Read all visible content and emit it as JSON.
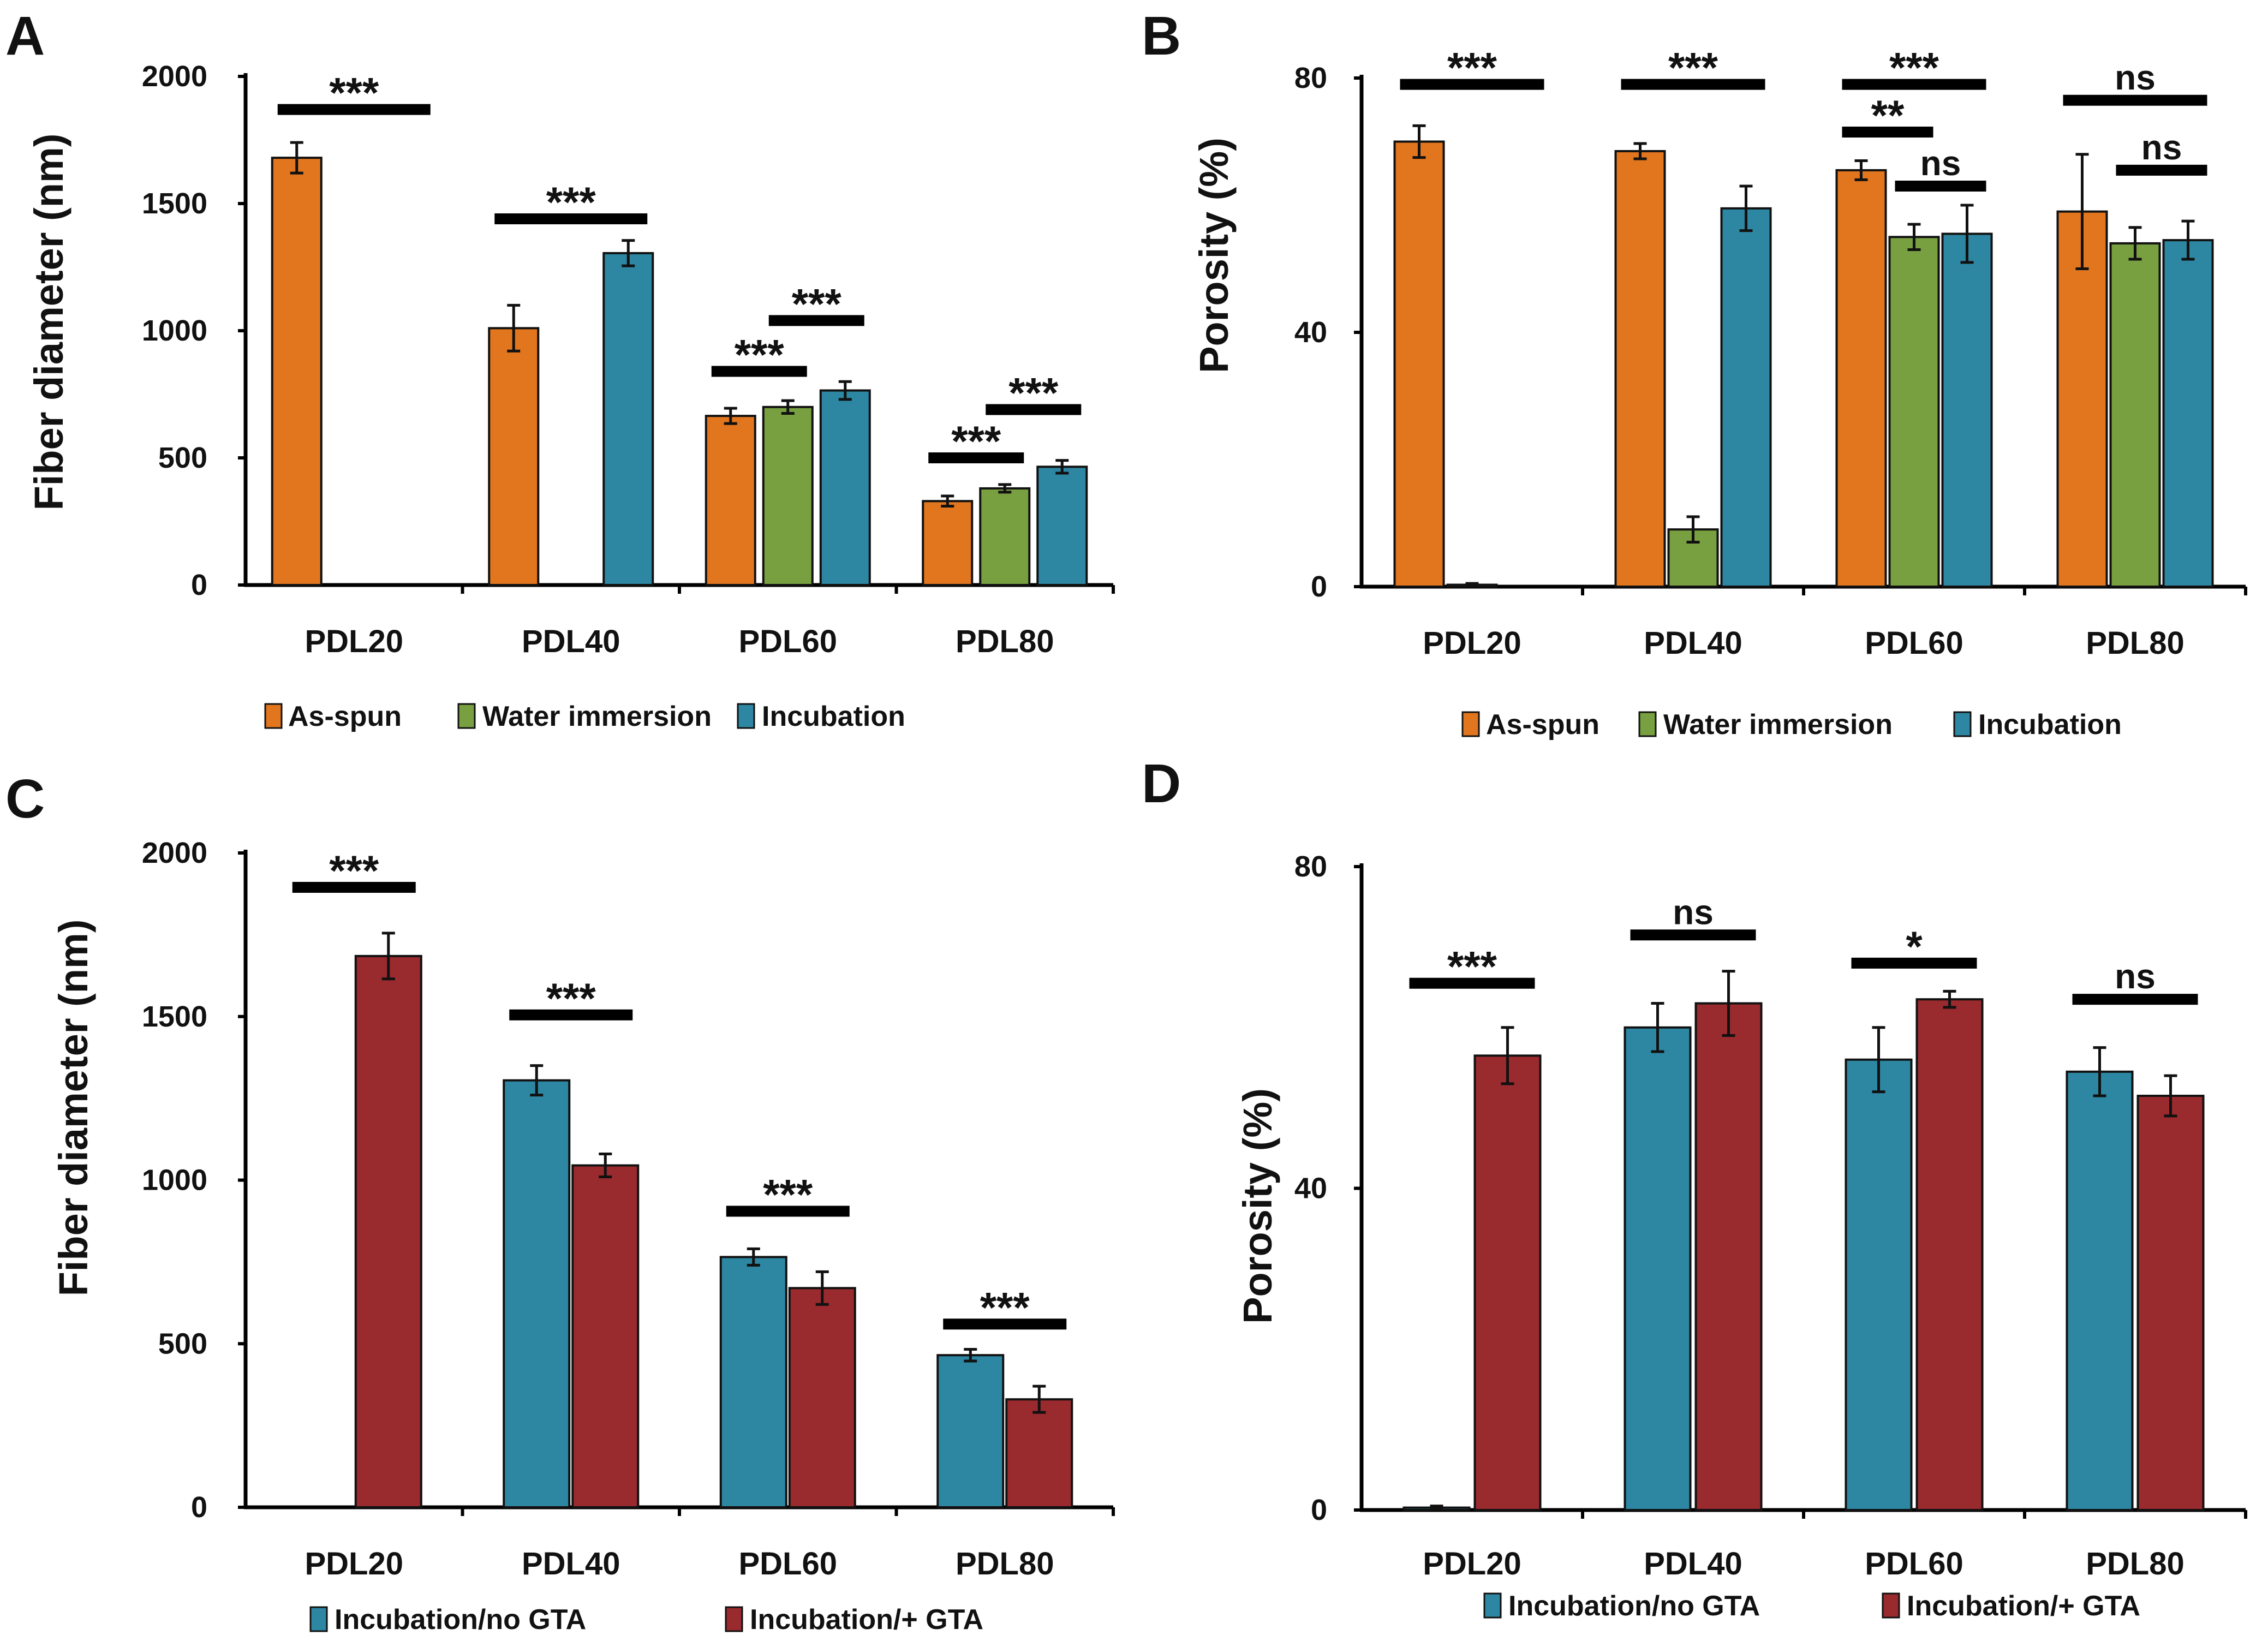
{
  "colors": {
    "as_spun": "#E2761E",
    "water_immersion": "#78A040",
    "incubation": "#2E87A2",
    "incubation_gta": "#992A2E"
  },
  "chart_data": [
    {
      "panel": "A",
      "type": "bar",
      "ylabel": "Fiber diameter (nm)",
      "ylim": [
        0,
        2000
      ],
      "yticks": [
        "0",
        "500",
        "1000",
        "1500",
        "2000"
      ],
      "categories": [
        "PDL20",
        "PDL40",
        "PDL60",
        "PDL80"
      ],
      "series": [
        {
          "name": "As-spun",
          "color_key": "as_spun",
          "values": [
            1680,
            1010,
            665,
            330
          ],
          "errors": [
            60,
            90,
            30,
            20
          ]
        },
        {
          "name": "Water immersion",
          "color_key": "water_immersion",
          "values": [
            null,
            null,
            700,
            380
          ],
          "errors": [
            null,
            null,
            25,
            15
          ]
        },
        {
          "name": "Incubation",
          "color_key": "incubation",
          "values": [
            null,
            1305,
            765,
            465
          ],
          "errors": [
            null,
            50,
            35,
            25
          ]
        }
      ],
      "significance": [
        {
          "label": "***",
          "category": 0,
          "from_series": 0,
          "to_series": 2,
          "level": 1870
        },
        {
          "label": "***",
          "category": 1,
          "from_series": 0,
          "to_series": 2,
          "level": 1440
        },
        {
          "label": "***",
          "category": 2,
          "from_series": 0,
          "to_series": 1,
          "level": 840
        },
        {
          "label": "***",
          "category": 2,
          "from_series": 1,
          "to_series": 2,
          "level": 1040
        },
        {
          "label": "***",
          "category": 3,
          "from_series": 0,
          "to_series": 1,
          "level": 500
        },
        {
          "label": "***",
          "category": 3,
          "from_series": 1,
          "to_series": 2,
          "level": 690
        }
      ]
    },
    {
      "panel": "B",
      "type": "bar",
      "ylabel": "Porosity (%)",
      "ylim": [
        0,
        80
      ],
      "yticks": [
        "0",
        "40",
        "80"
      ],
      "categories": [
        "PDL20",
        "PDL40",
        "PDL60",
        "PDL80"
      ],
      "series": [
        {
          "name": "As-spun",
          "color_key": "as_spun",
          "values": [
            70,
            68.5,
            65.5,
            59
          ],
          "errors": [
            2.5,
            1.2,
            1.5,
            9
          ]
        },
        {
          "name": "Water immersion",
          "color_key": "water_immersion",
          "values": [
            0.3,
            9,
            55,
            54
          ],
          "errors": [
            0.2,
            2,
            2,
            2.5
          ]
        },
        {
          "name": "Incubation",
          "color_key": "incubation",
          "values": [
            null,
            59.5,
            55.5,
            54.5
          ],
          "errors": [
            null,
            3.5,
            4.5,
            3
          ]
        }
      ],
      "significance": [
        {
          "label": "***",
          "category": 0,
          "from_series": 0,
          "to_series": 2,
          "level": 79
        },
        {
          "label": "***",
          "category": 1,
          "from_series": 0,
          "to_series": 2,
          "level": 79
        },
        {
          "label": "***",
          "category": 2,
          "from_series": 0,
          "to_series": 2,
          "level": 79
        },
        {
          "label": "**",
          "category": 2,
          "from_series": 0,
          "to_series": 1,
          "level": 71.5
        },
        {
          "label": "ns",
          "category": 2,
          "from_series": 1,
          "to_series": 2,
          "level": 63
        },
        {
          "label": "ns",
          "category": 3,
          "from_series": 0,
          "to_series": 2,
          "level": 76.5
        },
        {
          "label": "ns",
          "category": 3,
          "from_series": 1,
          "to_series": 2,
          "level": 65.5
        }
      ]
    },
    {
      "panel": "C",
      "type": "bar",
      "ylabel": "Fiber diameter (nm)",
      "ylim": [
        0,
        2000
      ],
      "yticks": [
        "0",
        "500",
        "1000",
        "1500",
        "2000"
      ],
      "categories": [
        "PDL20",
        "PDL40",
        "PDL60",
        "PDL80"
      ],
      "series": [
        {
          "name": "Incubation/no GTA",
          "color_key": "incubation",
          "values": [
            null,
            1305,
            765,
            465
          ],
          "errors": [
            null,
            45,
            25,
            18
          ]
        },
        {
          "name": "Incubation/+ GTA",
          "color_key": "incubation_gta",
          "values": [
            1685,
            1045,
            670,
            330
          ],
          "errors": [
            70,
            35,
            50,
            40
          ]
        }
      ],
      "significance": [
        {
          "label": "***",
          "category": 0,
          "from_series": 0,
          "to_series": 1,
          "level": 1895
        },
        {
          "label": "***",
          "category": 1,
          "from_series": 0,
          "to_series": 1,
          "level": 1505
        },
        {
          "label": "***",
          "category": 2,
          "from_series": 0,
          "to_series": 1,
          "level": 905
        },
        {
          "label": "***",
          "category": 3,
          "from_series": 0,
          "to_series": 1,
          "level": 560
        }
      ]
    },
    {
      "panel": "D",
      "type": "bar",
      "ylabel": "Porosity (%)",
      "ylim": [
        0,
        80
      ],
      "yticks": [
        "0",
        "40",
        "80"
      ],
      "categories": [
        "PDL20",
        "PDL40",
        "PDL60",
        "PDL80"
      ],
      "series": [
        {
          "name": "Incubation/no GTA",
          "color_key": "incubation",
          "values": [
            0.3,
            60,
            56,
            54.5
          ],
          "errors": [
            0.2,
            3,
            4,
            3
          ]
        },
        {
          "name": "Incubation/+ GTA",
          "color_key": "incubation_gta",
          "values": [
            56.5,
            63,
            63.5,
            51.5
          ],
          "errors": [
            3.5,
            4,
            1,
            2.5
          ]
        }
      ],
      "significance": [
        {
          "label": "***",
          "category": 0,
          "from_series": 0,
          "to_series": 1,
          "level": 65.5
        },
        {
          "label": "ns",
          "category": 1,
          "from_series": 0,
          "to_series": 1,
          "level": 71.5
        },
        {
          "label": "*",
          "category": 2,
          "from_series": 0,
          "to_series": 1,
          "level": 68
        },
        {
          "label": "ns",
          "category": 3,
          "from_series": 0,
          "to_series": 1,
          "level": 63.5
        }
      ]
    }
  ]
}
